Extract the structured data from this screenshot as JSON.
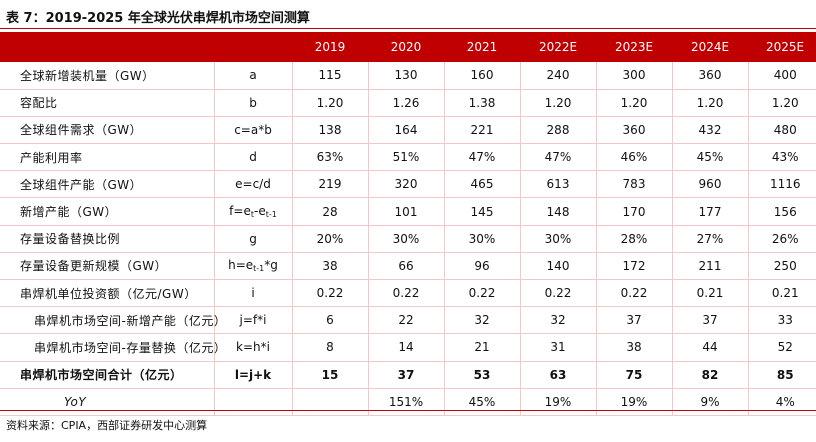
{
  "title": "表 7：2019-2025 年全球光伏串焊机市场空间测算",
  "years": [
    "2019",
    "2020",
    "2021",
    "2022E",
    "2023E",
    "2024E",
    "2025E"
  ],
  "rows": [
    {
      "label": "全球新增装机量（GW）",
      "formula": "a",
      "values": [
        "115",
        "130",
        "160",
        "240",
        "300",
        "360",
        "400"
      ]
    },
    {
      "label": "容配比",
      "formula": "b",
      "values": [
        "1.20",
        "1.26",
        "1.38",
        "1.20",
        "1.20",
        "1.20",
        "1.20"
      ]
    },
    {
      "label": "全球组件需求（GW）",
      "formula": "c=a*b",
      "values": [
        "138",
        "164",
        "221",
        "288",
        "360",
        "432",
        "480"
      ]
    },
    {
      "label": "产能利用率",
      "formula": "d",
      "values": [
        "63%",
        "51%",
        "47%",
        "47%",
        "46%",
        "45%",
        "43%"
      ]
    },
    {
      "label": "全球组件产能（GW）",
      "formula": "e=c/d",
      "values": [
        "219",
        "320",
        "465",
        "613",
        "783",
        "960",
        "1116"
      ]
    },
    {
      "label": "新增产能（GW）",
      "formula_main": "f=e",
      "formula_sub1": "t",
      "formula_mid": "-e",
      "formula_sub2": "t-1",
      "values": [
        "28",
        "101",
        "145",
        "148",
        "170",
        "177",
        "156"
      ]
    },
    {
      "label": "存量设备替换比例",
      "formula": "g",
      "values": [
        "20%",
        "30%",
        "30%",
        "30%",
        "28%",
        "27%",
        "26%"
      ]
    },
    {
      "label": "存量设备更新规模（GW）",
      "formula_main": "h=e",
      "formula_sub1": "t-1",
      "formula_mid": "*g",
      "values": [
        "38",
        "66",
        "96",
        "140",
        "172",
        "211",
        "250"
      ]
    },
    {
      "label": "串焊机单位投资额（亿元/GW）",
      "formula": "i",
      "values": [
        "0.22",
        "0.22",
        "0.22",
        "0.22",
        "0.22",
        "0.21",
        "0.21"
      ]
    },
    {
      "label": "串焊机市场空间-新增产能（亿元）",
      "formula": "j=f*i",
      "values": [
        "6",
        "22",
        "32",
        "32",
        "37",
        "37",
        "33"
      ]
    },
    {
      "label": "串焊机市场空间-存量替换（亿元）",
      "formula": "k=h*i",
      "values": [
        "8",
        "14",
        "21",
        "31",
        "38",
        "44",
        "52"
      ]
    },
    {
      "label": "串焊机市场空间合计（亿元）",
      "formula": "l=j+k",
      "values": [
        "15",
        "37",
        "53",
        "63",
        "75",
        "82",
        "85"
      ]
    },
    {
      "label": "YoY",
      "formula": "",
      "values": [
        "",
        "151%",
        "45%",
        "19%",
        "19%",
        "9%",
        "4%"
      ]
    }
  ],
  "source": "资料来源：CPIA，西部证券研发中心测算"
}
